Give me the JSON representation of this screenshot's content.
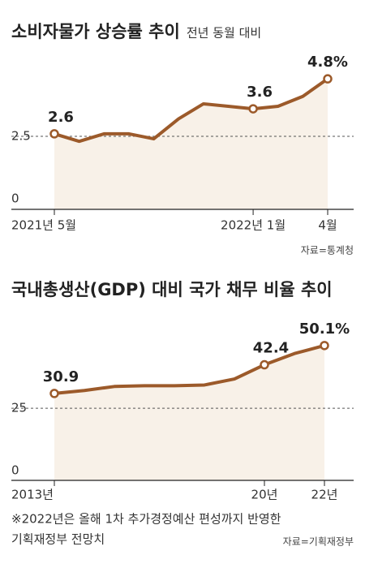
{
  "chart_data": [
    {
      "type": "line",
      "title": "소비자물가 상승률 추이",
      "subtitle": "전년 동월 대비",
      "categories": [
        "2021년 5월",
        null,
        null,
        null,
        null,
        null,
        null,
        null,
        "2022년 1월",
        null,
        null,
        "4월"
      ],
      "values": [
        2.6,
        2.3,
        2.6,
        2.6,
        2.4,
        3.2,
        3.8,
        3.7,
        3.6,
        3.7,
        4.1,
        4.8
      ],
      "value_labels": [
        "2.6",
        null,
        null,
        null,
        null,
        null,
        null,
        null,
        "3.6",
        null,
        null,
        "4.8%"
      ],
      "ylim": [
        0,
        5.0
      ],
      "yticks": [
        0,
        2.5
      ],
      "color": "#9c5a2a",
      "fill": "#f8f1e8",
      "source": "자료=통계청"
    },
    {
      "type": "line",
      "title": "국내총생산(GDP) 대비 국가 채무 비율 추이",
      "categories": [
        "2013년",
        null,
        null,
        null,
        null,
        null,
        null,
        "20년",
        null,
        "22년"
      ],
      "values": [
        30.9,
        32.1,
        33.7,
        34.0,
        34.0,
        34.3,
        36.7,
        42.4,
        46.9,
        50.1
      ],
      "value_labels": [
        "30.9",
        null,
        null,
        null,
        null,
        null,
        null,
        "42.4",
        null,
        "50.1%"
      ],
      "ylim": [
        0,
        52
      ],
      "yticks": [
        0,
        25
      ],
      "color": "#9c5a2a",
      "fill": "#f8f1e8",
      "note": [
        "※2022년은 올해 1차 추가경정예산 편성까지 반영한",
        "기획재정부 전망치"
      ],
      "source": "자료=기획재정부"
    }
  ]
}
